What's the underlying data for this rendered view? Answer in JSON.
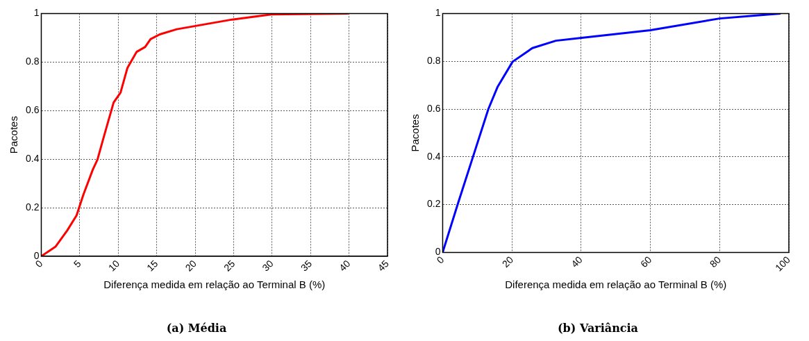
{
  "chart_data": [
    {
      "type": "line",
      "title": "(a) Média",
      "xlabel": "Diferença medida em relação ao Terminal B (%)",
      "ylabel": "Pacotes",
      "xlim": [
        0,
        45
      ],
      "xticks": [
        0,
        5,
        10,
        15,
        20,
        25,
        30,
        35,
        40,
        45
      ],
      "ylim": [
        0,
        1
      ],
      "yticks": [
        0,
        0.2,
        0.4,
        0.6,
        0.8,
        1
      ],
      "grid": true,
      "legend": false,
      "marker": "none",
      "line_style": "solid",
      "series": [
        {
          "color": "#ff0000",
          "x": [
            0,
            1.87,
            3.37,
            4.58,
            5.49,
            6.7,
            7.3,
            8.2,
            9.4,
            10.3,
            11.2,
            12.4,
            13.5,
            14.2,
            15.4,
            17.6,
            22.1,
            24.8,
            29.9,
            39.9
          ],
          "values": [
            0,
            0.04,
            0.106,
            0.168,
            0.255,
            0.357,
            0.398,
            0.5,
            0.633,
            0.674,
            0.776,
            0.842,
            0.862,
            0.894,
            0.914,
            0.935,
            0.96,
            0.975,
            0.996,
            1
          ]
        }
      ]
    },
    {
      "type": "line",
      "title": "(b) Variância",
      "xlabel": "Diferença medida em relação ao Terminal B (%)",
      "ylabel": "Pacotes",
      "xlim": [
        0,
        100
      ],
      "xticks": [
        0,
        20,
        40,
        60,
        80,
        100
      ],
      "ylim": [
        0,
        1
      ],
      "yticks": [
        0,
        0.2,
        0.4,
        0.6,
        0.8,
        1
      ],
      "grid": true,
      "legend": false,
      "marker": "none",
      "line_style": "solid",
      "series": [
        {
          "color": "#0000ff",
          "x": [
            0,
            4.4,
            8.8,
            13.2,
            15.9,
            20.2,
            25.9,
            32.7,
            40.1,
            60,
            80,
            97.6
          ],
          "values": [
            0,
            0.204,
            0.402,
            0.6,
            0.694,
            0.798,
            0.855,
            0.886,
            0.898,
            0.93,
            0.979,
            1
          ]
        }
      ]
    }
  ]
}
